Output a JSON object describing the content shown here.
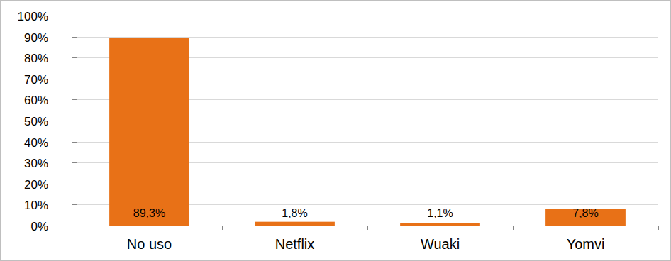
{
  "chart_data": {
    "type": "bar",
    "categories": [
      "No uso",
      "Netflix",
      "Wuaki",
      "Yomvi"
    ],
    "values": [
      89.3,
      1.8,
      1.1,
      7.8
    ],
    "value_labels": [
      "89,3%",
      "1,8%",
      "1,1%",
      "7,8%"
    ],
    "color": "#e87117",
    "ylim": [
      0,
      100
    ],
    "yticks": [
      {
        "value": 0,
        "label": "0%"
      },
      {
        "value": 10,
        "label": "10%"
      },
      {
        "value": 20,
        "label": "20%"
      },
      {
        "value": 30,
        "label": "30%"
      },
      {
        "value": 40,
        "label": "40%"
      },
      {
        "value": 50,
        "label": "50%"
      },
      {
        "value": 60,
        "label": "60%"
      },
      {
        "value": 70,
        "label": "70%"
      },
      {
        "value": 80,
        "label": "80%"
      },
      {
        "value": 90,
        "label": "90%"
      },
      {
        "value": 100,
        "label": "100%"
      }
    ],
    "grid": true,
    "data_labels": true
  }
}
